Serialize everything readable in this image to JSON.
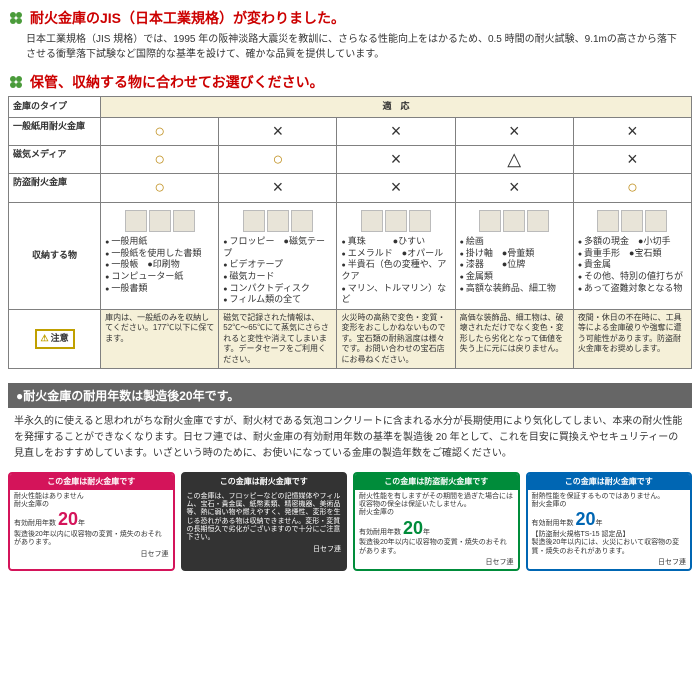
{
  "section1": {
    "title": "耐火金庫のJIS（日本工業規格）が変わりました。",
    "body": "日本工業規格（JIS 規格）では、1995 年の阪神淡路大震災を教訓に、さらなる性能向上をはかるため、0.5 時間の耐火試験、9.1mの高さから落下させる衝撃落下試験など国際的な基準を設けて、確かな品質を提供しています。"
  },
  "section2": {
    "title": "保管、収納する物に合わせてお選びください。"
  },
  "table": {
    "header_type": "金庫のタイプ",
    "header_compat": "適　応",
    "rows": [
      {
        "label": "一般紙用耐火金庫",
        "syms": [
          "○",
          "×",
          "×",
          "×",
          "×"
        ]
      },
      {
        "label": "磁気メディア",
        "syms": [
          "○",
          "○",
          "×",
          "△",
          "×"
        ]
      },
      {
        "label": "防盗耐火金庫",
        "syms": [
          "○",
          "×",
          "×",
          "×",
          "○"
        ]
      }
    ],
    "store_label": "収納する物",
    "columns": [
      {
        "items": [
          "一般用紙",
          "一般紙を使用した書類",
          "一般帳　●印刷物",
          "コンピューター紙",
          "一般書類"
        ]
      },
      {
        "items": [
          "フロッピー　●磁気テープ",
          "ビデオテープ",
          "磁気カード",
          "コンパクトディスク",
          "フィルム類の全て"
        ]
      },
      {
        "items": [
          "真珠　　　●ひすい",
          "エメラルド　●オパール",
          "半貴石（色の変種や、アクア",
          "マリン、トルマリン）など"
        ]
      },
      {
        "items": [
          "絵画",
          "掛け軸　●骨董類",
          "漆器　　●位牌",
          "金属類",
          "高額な装飾品、細工物"
        ]
      },
      {
        "items": [
          "多額の現金　●小切手",
          "貴重手形　●宝石類",
          "貴金属",
          "その他、特別の値打ちが",
          "あって盗難対象となる物"
        ]
      }
    ],
    "caution_label": "注意",
    "cautions": [
      "庫内は、一般紙のみを収納してください。177℃以下に保てます。",
      "磁気で記録された情報は、52℃～65℃にて蒸気にさらされると変性や消えてしまいます。データセーフをご利用ください。",
      "火災時の高熱で変色・変質・変形をおこしかねないものです。宝石類の耐熱温度は様々です。お問い合わせの宝石店にお尋ねください。",
      "高価な装飾品、細工物は、破壊されただけでなく変色・変形したら劣化となって価値を失う上に元には戻りません。",
      "夜間・休日の不在時に、工具等による金庫破りや強奪に遭う可能性があります。防盗耐火金庫をお奨めします。"
    ]
  },
  "gray": {
    "title": "●耐火金庫の耐用年数は製造後20年です。",
    "body": "半永久的に使えると思われがちな耐火金庫ですが、耐火材である気泡コンクリートに含まれる水分が長期使用により気化してしまい、本来の耐火性能を発揮することができなくなります。日セフ連では、耐火金庫の有効耐用年数の基準を製造後 20 年として、これを目安に買換えやセキュリティーの見直しをおすすめしています。いざという時のために、お使いになっている金庫の製造年数をご確認ください。"
  },
  "labels": [
    {
      "cls": "lc1",
      "head": "この金庫は耐火金庫です",
      "left_top": "耐火金庫の",
      "left_mid": "有効耐用年数",
      "twenty": "20",
      "yr": "年",
      "note": "耐火性能はありません",
      "note2": "製造後20年以内に収容物の変質・焼失のおそれがあります。",
      "sig": "日セフ連"
    },
    {
      "cls": "lc2",
      "head": "この金庫は耐火金庫です",
      "left_top": "この金庫は、フロッピーなどの記憶媒体やフィルム、宝石・貴金属、紙幣素類、精密機器、美術品等、熱に弱い物や燃えやすく、発煙性、変形を生じる恐れがある物は収納できません。変形・変質の長期恒久で劣化がございますので十分にご注意下さい。",
      "sig": "日セフ連"
    },
    {
      "cls": "lc3",
      "head": "この金庫は防盗耐火金庫です",
      "left_top": "耐火金庫の",
      "left_mid": "有効耐用年数",
      "twenty": "20",
      "yr": "年",
      "note": "耐火性能を有しますがその期間を過ぎた場合には収容物の保全は保証いたしません。",
      "note2": "製造後20年以内に収容物の変質・焼失のおそれがあります。",
      "sig": "日セフ連"
    },
    {
      "cls": "lc4",
      "head": "この金庫は耐火金庫です",
      "left_top": "耐火金庫の",
      "left_mid": "有効耐用年数",
      "twenty": "20",
      "yr": "年",
      "note": "耐熱性能を保証するものではありません。",
      "note2": "【防盗耐火規格TS-15 認定品】",
      "note3": "製造後20年以内には、火災において収容物の変質・焼失のおそれがあります。",
      "sig": "日セフ連"
    }
  ]
}
